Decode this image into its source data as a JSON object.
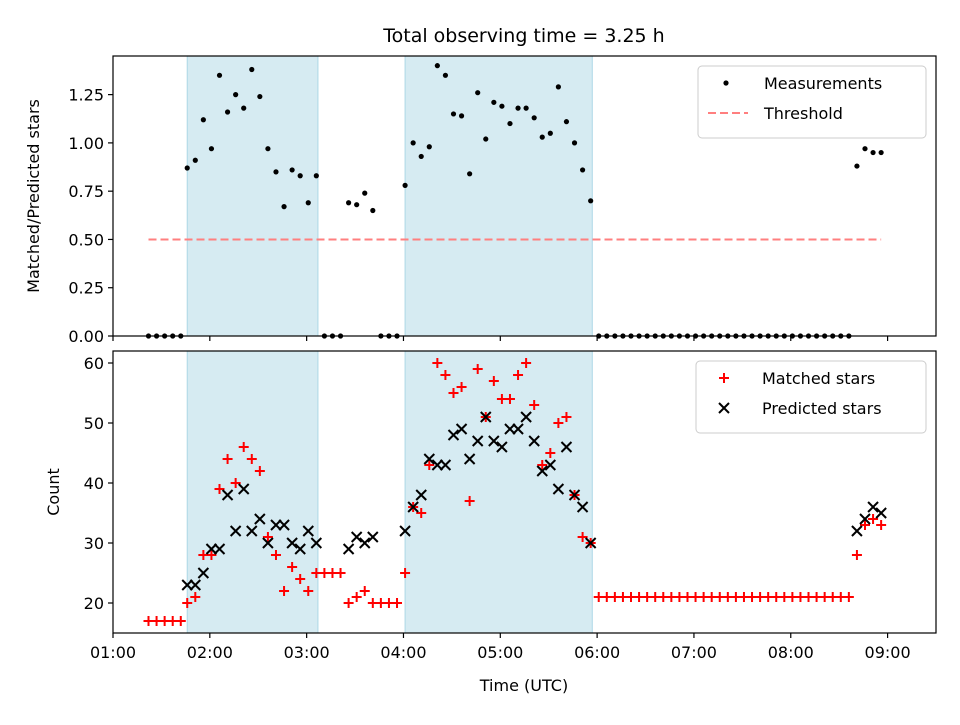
{
  "chart_data": [
    {
      "type": "scatter",
      "title": "Total observing time = 3.25 h",
      "ylabel": "Matched/Predicted stars",
      "ylim": [
        0,
        1.45
      ],
      "xlim": [
        "01:00",
        "09:30"
      ],
      "yticks": [
        "0.00",
        "0.25",
        "0.50",
        "0.75",
        "1.00",
        "1.25"
      ],
      "legend": "top-right",
      "shaded_intervals": [
        [
          "01:46",
          "03:07"
        ],
        [
          "04:01",
          "05:57"
        ]
      ],
      "series": [
        {
          "name": "Measurements",
          "marker": "dot",
          "color": "#000000",
          "x": [
            "01:22",
            "01:27",
            "01:32",
            "01:37",
            "01:42",
            "01:46",
            "01:51",
            "01:56",
            "02:01",
            "02:06",
            "02:11",
            "02:16",
            "02:21",
            "02:26",
            "02:31",
            "02:36",
            "02:41",
            "02:46",
            "02:51",
            "02:56",
            "03:01",
            "03:06",
            "03:11",
            "03:16",
            "03:21",
            "03:26",
            "03:31",
            "03:36",
            "03:41",
            "03:46",
            "03:51",
            "03:56",
            "04:01",
            "04:06",
            "04:11",
            "04:16",
            "04:21",
            "04:26",
            "04:31",
            "04:36",
            "04:41",
            "04:46",
            "04:51",
            "04:56",
            "05:01",
            "05:06",
            "05:11",
            "05:16",
            "05:21",
            "05:26",
            "05:31",
            "05:36",
            "05:41",
            "05:46",
            "05:51",
            "05:56",
            "06:01",
            "06:06",
            "06:11",
            "06:16",
            "06:21",
            "06:26",
            "06:31",
            "06:36",
            "06:41",
            "06:46",
            "06:51",
            "06:56",
            "07:01",
            "07:06",
            "07:11",
            "07:16",
            "07:21",
            "07:26",
            "07:31",
            "07:36",
            "07:41",
            "07:46",
            "07:51",
            "07:56",
            "08:01",
            "08:06",
            "08:11",
            "08:16",
            "08:21",
            "08:26",
            "08:31",
            "08:36",
            "08:41",
            "08:46",
            "08:51",
            "08:56"
          ],
          "y": [
            0,
            0,
            0,
            0,
            0,
            0.87,
            0.91,
            1.12,
            0.97,
            1.35,
            1.16,
            1.25,
            1.18,
            1.38,
            1.24,
            0.97,
            0.85,
            0.67,
            0.86,
            0.83,
            0.69,
            0.83,
            0,
            0,
            0,
            0.69,
            0.68,
            0.74,
            0.65,
            0,
            0,
            0,
            0.78,
            1.0,
            0.93,
            0.98,
            1.4,
            1.35,
            1.15,
            1.14,
            0.84,
            1.26,
            1.02,
            1.21,
            1.19,
            1.1,
            1.18,
            1.18,
            1.13,
            1.03,
            1.05,
            1.29,
            1.11,
            1.0,
            0.86,
            0.7,
            0,
            0,
            0,
            0,
            0,
            0,
            0,
            0,
            0,
            0,
            0,
            0,
            0,
            0,
            0,
            0,
            0,
            0,
            0,
            0,
            0,
            0,
            0,
            0,
            0,
            0,
            0,
            0,
            0,
            0,
            0,
            0,
            0.88,
            0.97,
            0.95,
            0.95
          ]
        },
        {
          "name": "Threshold",
          "type": "line",
          "style": "dashed",
          "color": "#ff7f7f",
          "x": [
            "01:22",
            "08:56"
          ],
          "y": [
            0.5,
            0.5
          ]
        }
      ]
    },
    {
      "type": "scatter",
      "xlabel": "Time (UTC)",
      "ylabel": "Count",
      "ylim": [
        15,
        62
      ],
      "xlim": [
        "01:00",
        "09:30"
      ],
      "yticks": [
        "20",
        "30",
        "40",
        "50",
        "60"
      ],
      "xticks": [
        "01:00",
        "02:00",
        "03:00",
        "04:00",
        "05:00",
        "06:00",
        "07:00",
        "08:00",
        "09:00"
      ],
      "legend": "top-right",
      "shaded_intervals": [
        [
          "01:46",
          "03:07"
        ],
        [
          "04:01",
          "05:57"
        ]
      ],
      "series": [
        {
          "name": "Matched stars",
          "marker": "plus",
          "color": "#ff0000",
          "x": [
            "01:22",
            "01:27",
            "01:32",
            "01:37",
            "01:42",
            "01:46",
            "01:51",
            "01:56",
            "02:01",
            "02:06",
            "02:11",
            "02:16",
            "02:21",
            "02:26",
            "02:31",
            "02:36",
            "02:41",
            "02:46",
            "02:51",
            "02:56",
            "03:01",
            "03:06",
            "03:11",
            "03:16",
            "03:21",
            "03:26",
            "03:31",
            "03:36",
            "03:41",
            "03:46",
            "03:51",
            "03:56",
            "04:01",
            "04:06",
            "04:11",
            "04:16",
            "04:21",
            "04:26",
            "04:31",
            "04:36",
            "04:41",
            "04:46",
            "04:51",
            "04:56",
            "05:01",
            "05:06",
            "05:11",
            "05:16",
            "05:21",
            "05:26",
            "05:31",
            "05:36",
            "05:41",
            "05:46",
            "05:51",
            "05:56",
            "06:01",
            "06:06",
            "06:11",
            "06:16",
            "06:21",
            "06:26",
            "06:31",
            "06:36",
            "06:41",
            "06:46",
            "06:51",
            "06:56",
            "07:01",
            "07:06",
            "07:11",
            "07:16",
            "07:21",
            "07:26",
            "07:31",
            "07:36",
            "07:41",
            "07:46",
            "07:51",
            "07:56",
            "08:01",
            "08:06",
            "08:11",
            "08:16",
            "08:21",
            "08:26",
            "08:31",
            "08:36",
            "08:41",
            "08:46",
            "08:51",
            "08:56"
          ],
          "y": [
            17,
            17,
            17,
            17,
            17,
            20,
            21,
            28,
            28,
            39,
            44,
            40,
            46,
            44,
            42,
            31,
            28,
            22,
            26,
            24,
            22,
            25,
            25,
            25,
            25,
            20,
            21,
            22,
            20,
            20,
            20,
            20,
            25,
            36,
            35,
            43,
            60,
            58,
            55,
            56,
            37,
            59,
            51,
            57,
            54,
            54,
            58,
            60,
            53,
            43,
            45,
            50,
            51,
            38,
            31,
            30,
            21,
            21,
            21,
            21,
            21,
            21,
            21,
            21,
            21,
            21,
            21,
            21,
            21,
            21,
            21,
            21,
            21,
            21,
            21,
            21,
            21,
            21,
            21,
            21,
            21,
            21,
            21,
            21,
            21,
            21,
            21,
            21,
            28,
            33,
            34,
            33
          ]
        },
        {
          "name": "Predicted stars",
          "marker": "x",
          "color": "#000000",
          "x": [
            "01:46",
            "01:51",
            "01:56",
            "02:01",
            "02:06",
            "02:11",
            "02:16",
            "02:21",
            "02:26",
            "02:31",
            "02:36",
            "02:41",
            "02:46",
            "02:51",
            "02:56",
            "03:01",
            "03:06",
            "03:26",
            "03:31",
            "03:36",
            "03:41",
            "04:01",
            "04:06",
            "04:11",
            "04:16",
            "04:21",
            "04:26",
            "04:31",
            "04:36",
            "04:41",
            "04:46",
            "04:51",
            "04:56",
            "05:01",
            "05:06",
            "05:11",
            "05:16",
            "05:21",
            "05:26",
            "05:31",
            "05:36",
            "05:41",
            "05:46",
            "05:51",
            "05:56",
            "08:41",
            "08:46",
            "08:51",
            "08:56"
          ],
          "y": [
            23,
            23,
            25,
            29,
            29,
            38,
            32,
            39,
            32,
            34,
            30,
            33,
            33,
            30,
            29,
            32,
            30,
            29,
            31,
            30,
            31,
            32,
            36,
            38,
            44,
            43,
            43,
            48,
            49,
            44,
            47,
            51,
            47,
            46,
            49,
            49,
            51,
            47,
            42,
            43,
            39,
            46,
            38,
            36,
            30,
            32,
            34,
            36,
            35
          ]
        }
      ]
    }
  ]
}
